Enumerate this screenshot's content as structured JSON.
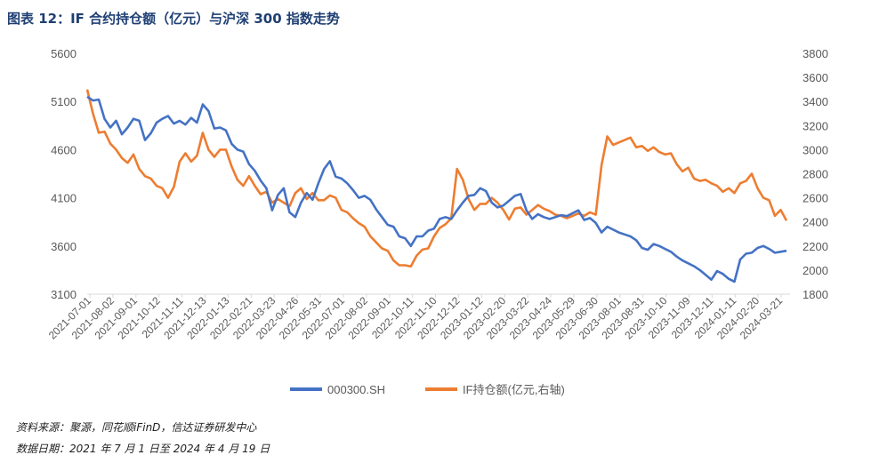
{
  "header": {
    "title": "图表 12：IF 合约持仓额（亿元）与沪深 300 指数走势"
  },
  "footer": {
    "source": "资料来源：聚源，同花顺iFinD，信达证券研发中心",
    "date": "数据日期：2021 年 7 月 1 日至 2024 年 4 月 19 日"
  },
  "colors": {
    "index": "#4472c4",
    "oi": "#ed7d31",
    "axis": "#d9d9d9",
    "text": "#595959"
  },
  "chart_data": {
    "type": "line",
    "x_ticks": [
      "2021-07-01",
      "2021-08-02",
      "2021-09-01",
      "2021-10-12",
      "2021-11-11",
      "2021-12-13",
      "2022-01-13",
      "2022-02-21",
      "2022-03-23",
      "2022-04-26",
      "2022-05-31",
      "2022-07-01",
      "2022-08-02",
      "2022-09-01",
      "2022-10-11",
      "2022-11-10",
      "2022-12-12",
      "2023-01-12",
      "2023-02-20",
      "2023-03-22",
      "2023-04-24",
      "2023-05-29",
      "2023-06-30",
      "2023-08-01",
      "2023-08-31",
      "2023-10-10",
      "2023-11-09",
      "2023-12-11",
      "2024-01-11",
      "2024-02-20",
      "2024-03-21"
    ],
    "y_left": {
      "min": 3100,
      "max": 5600,
      "ticks": [
        3100,
        3600,
        4100,
        4600,
        5100,
        5600
      ]
    },
    "y_right": {
      "min": 1800,
      "max": 3800,
      "ticks": [
        1800,
        2000,
        2200,
        2400,
        2600,
        2800,
        3000,
        3200,
        3400,
        3600,
        3800
      ]
    },
    "grid": false,
    "legend_position": "bottom",
    "series": [
      {
        "name": "000300.SH",
        "axis": "left",
        "values": [
          5150,
          5110,
          5120,
          4920,
          4830,
          4900,
          4760,
          4830,
          4920,
          4900,
          4700,
          4770,
          4880,
          4920,
          4950,
          4870,
          4900,
          4860,
          4930,
          4880,
          5070,
          5000,
          4820,
          4830,
          4800,
          4660,
          4600,
          4580,
          4450,
          4380,
          4280,
          4200,
          3970,
          4130,
          4200,
          3950,
          3900,
          4050,
          4150,
          4080,
          4250,
          4400,
          4480,
          4320,
          4300,
          4250,
          4180,
          4100,
          4120,
          4080,
          3980,
          3900,
          3820,
          3800,
          3700,
          3680,
          3600,
          3700,
          3700,
          3760,
          3780,
          3880,
          3900,
          3880,
          3970,
          4050,
          4120,
          4130,
          4200,
          4170,
          4050,
          4000,
          4020,
          4070,
          4120,
          4140,
          3970,
          3880,
          3930,
          3900,
          3880,
          3900,
          3920,
          3910,
          3940,
          3970,
          3870,
          3890,
          3840,
          3740,
          3800,
          3770,
          3740,
          3720,
          3700,
          3660,
          3580,
          3560,
          3620,
          3600,
          3570,
          3540,
          3490,
          3450,
          3420,
          3390,
          3350,
          3300,
          3250,
          3340,
          3310,
          3260,
          3230,
          3460,
          3520,
          3530,
          3580,
          3600,
          3570,
          3530,
          3540,
          3550
        ]
      },
      {
        "name": "IF持仓额(亿元,右轴)",
        "axis": "right",
        "values": [
          3500,
          3300,
          3140,
          3150,
          3050,
          3000,
          2930,
          2890,
          2960,
          2840,
          2780,
          2760,
          2700,
          2680,
          2600,
          2690,
          2900,
          2970,
          2900,
          2950,
          3140,
          3000,
          2940,
          3000,
          3000,
          2860,
          2750,
          2700,
          2780,
          2700,
          2630,
          2650,
          2560,
          2590,
          2560,
          2530,
          2640,
          2680,
          2590,
          2640,
          2580,
          2580,
          2620,
          2600,
          2500,
          2480,
          2430,
          2390,
          2360,
          2280,
          2230,
          2180,
          2160,
          2080,
          2040,
          2040,
          2030,
          2120,
          2170,
          2180,
          2280,
          2350,
          2380,
          2430,
          2840,
          2750,
          2590,
          2500,
          2550,
          2550,
          2600,
          2560,
          2500,
          2420,
          2510,
          2520,
          2460,
          2500,
          2540,
          2510,
          2490,
          2460,
          2450,
          2430,
          2450,
          2470,
          2450,
          2480,
          2460,
          2870,
          3110,
          3040,
          3060,
          3080,
          3100,
          3020,
          3030,
          2990,
          3020,
          2980,
          2960,
          2970,
          2880,
          2820,
          2850,
          2760,
          2740,
          2750,
          2720,
          2700,
          2650,
          2680,
          2640,
          2720,
          2740,
          2800,
          2680,
          2600,
          2580,
          2450,
          2500,
          2410
        ]
      }
    ]
  },
  "legend": {
    "index_label": "000300.SH",
    "oi_label": "IF持仓额(亿元,右轴)"
  }
}
